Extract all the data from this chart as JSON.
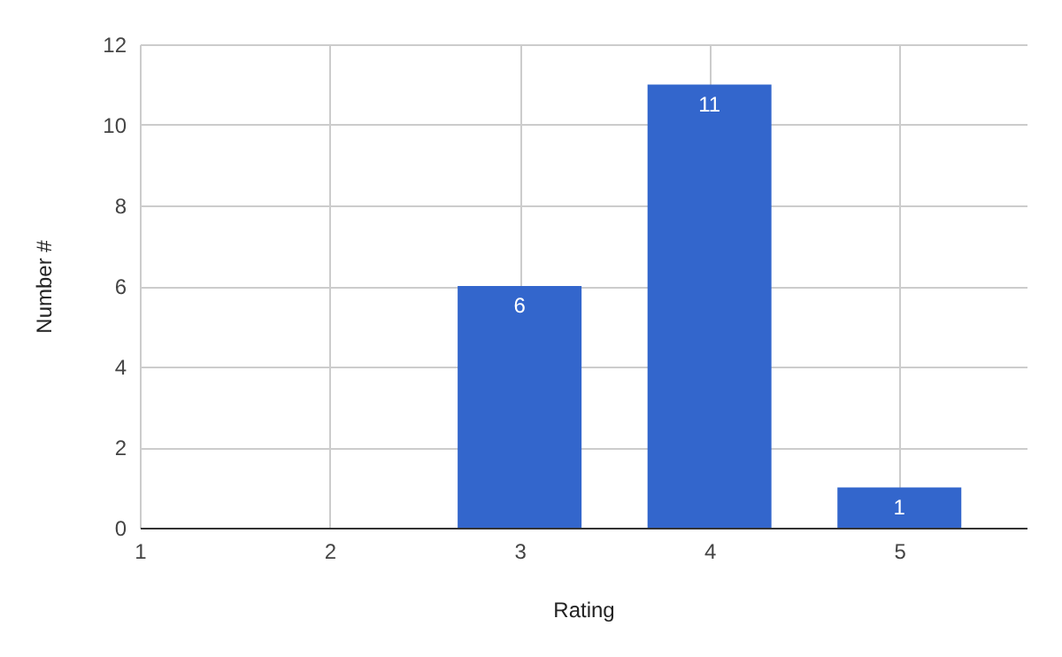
{
  "chart_data": {
    "type": "bar",
    "xlabel": "Rating",
    "ylabel": "Number #",
    "x": [
      3,
      4,
      5
    ],
    "values": [
      6,
      11,
      1
    ],
    "color": "#3366cc",
    "xlim": [
      1,
      5.67
    ],
    "xticks": [
      1,
      2,
      3,
      4,
      5
    ],
    "ylim": [
      0,
      12
    ],
    "yticks": [
      0,
      2,
      4,
      6,
      8,
      10,
      12
    ],
    "grid": true,
    "data_labels": true
  }
}
